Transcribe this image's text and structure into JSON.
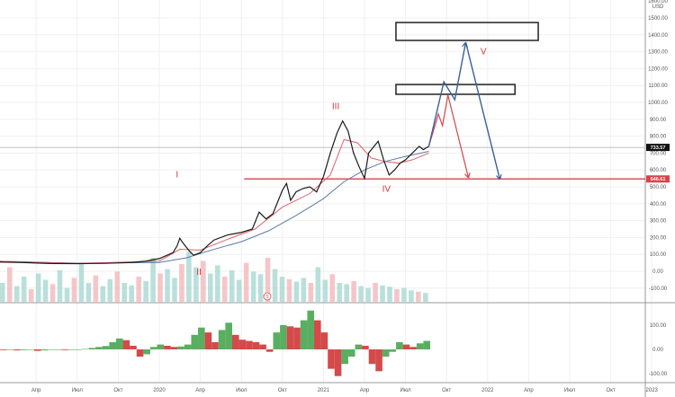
{
  "chart_data": {
    "type": "line",
    "currency_label": "USD",
    "x_unit": "months since 2020-01",
    "x_ticks": [
      {
        "t": -9,
        "label": "Апр"
      },
      {
        "t": -6,
        "label": "Июл"
      },
      {
        "t": -3,
        "label": "Окт"
      },
      {
        "t": 0,
        "label": "2020"
      },
      {
        "t": 3,
        "label": "Апр"
      },
      {
        "t": 6,
        "label": "Июл"
      },
      {
        "t": 9,
        "label": "Окт"
      },
      {
        "t": 12,
        "label": "2021"
      },
      {
        "t": 15,
        "label": "Апр"
      },
      {
        "t": 18,
        "label": "Июл"
      },
      {
        "t": 21,
        "label": "Окт"
      },
      {
        "t": 24,
        "label": "2022"
      },
      {
        "t": 27,
        "label": "Апр"
      },
      {
        "t": 30,
        "label": "Июл"
      },
      {
        "t": 33,
        "label": "Окт"
      },
      {
        "t": 36,
        "label": "2023"
      }
    ],
    "y_ticks": [
      "1500.00",
      "1400.00",
      "1300.00",
      "1200.00",
      "1100.00",
      "1000.00",
      "900.00",
      "800.00",
      "700.00",
      "600.00",
      "500.00",
      "400.00",
      "300.00",
      "200.00",
      "100.00",
      "0.00",
      "-100.00"
    ],
    "y_top_label": "1600.00",
    "ylim": [
      -150,
      1650
    ],
    "price": [
      [
        -12,
        55
      ],
      [
        -10,
        52
      ],
      [
        -8,
        46
      ],
      [
        -6,
        45
      ],
      [
        -4,
        47
      ],
      [
        -2,
        52
      ],
      [
        -1,
        60
      ],
      [
        0,
        75
      ],
      [
        1,
        110
      ],
      [
        1.3,
        150
      ],
      [
        1.5,
        195
      ],
      [
        1.8,
        160
      ],
      [
        2.2,
        120
      ],
      [
        2.5,
        95
      ],
      [
        3,
        110
      ],
      [
        3.5,
        150
      ],
      [
        4,
        185
      ],
      [
        5,
        215
      ],
      [
        6,
        230
      ],
      [
        6.8,
        250
      ],
      [
        7.3,
        350
      ],
      [
        7.8,
        310
      ],
      [
        8.3,
        340
      ],
      [
        9,
        480
      ],
      [
        9.3,
        520
      ],
      [
        9.6,
        420
      ],
      [
        10,
        470
      ],
      [
        10.5,
        490
      ],
      [
        11,
        500
      ],
      [
        11.5,
        470
      ],
      [
        12,
        560
      ],
      [
        12.5,
        700
      ],
      [
        13,
        820
      ],
      [
        13.4,
        890
      ],
      [
        13.8,
        830
      ],
      [
        14.2,
        700
      ],
      [
        14.6,
        620
      ],
      [
        15,
        550
      ],
      [
        15.3,
        700
      ],
      [
        15.7,
        740
      ],
      [
        16,
        770
      ],
      [
        16.4,
        660
      ],
      [
        16.8,
        570
      ],
      [
        17.2,
        600
      ],
      [
        17.6,
        640
      ],
      [
        18,
        660
      ],
      [
        18.5,
        700
      ],
      [
        19,
        740
      ],
      [
        19.3,
        720
      ],
      [
        19.7,
        740
      ]
    ],
    "ma_fast": [
      [
        -12,
        60
      ],
      [
        -6,
        46
      ],
      [
        0,
        60
      ],
      [
        1.5,
        130
      ],
      [
        3,
        125
      ],
      [
        5,
        190
      ],
      [
        7,
        250
      ],
      [
        9,
        380
      ],
      [
        11,
        460
      ],
      [
        12.5,
        570
      ],
      [
        13.5,
        780
      ],
      [
        14.5,
        760
      ],
      [
        15.5,
        670
      ],
      [
        16.5,
        650
      ],
      [
        17.5,
        640
      ],
      [
        18.5,
        660
      ],
      [
        19.7,
        700
      ]
    ],
    "ma_slow": [
      [
        -12,
        60
      ],
      [
        -6,
        48
      ],
      [
        0,
        52
      ],
      [
        2,
        80
      ],
      [
        4,
        130
      ],
      [
        6,
        175
      ],
      [
        8,
        240
      ],
      [
        10,
        330
      ],
      [
        12,
        430
      ],
      [
        13.5,
        530
      ],
      [
        15,
        600
      ],
      [
        16.5,
        650
      ],
      [
        18,
        680
      ],
      [
        19.7,
        710
      ]
    ],
    "volume": [
      30,
      55,
      25,
      40,
      20,
      45,
      35,
      28,
      50,
      22,
      38,
      60,
      30,
      42,
      25,
      36,
      48,
      30,
      26,
      40,
      33,
      70,
      45,
      52,
      38,
      60,
      80,
      55,
      65,
      45,
      58,
      40,
      50,
      35,
      62,
      48,
      44,
      70,
      52,
      40,
      36,
      32,
      38,
      30,
      55,
      35,
      44,
      30,
      28,
      33,
      25,
      22,
      30,
      26,
      24,
      20,
      22,
      18,
      16,
      14
    ],
    "oscillator": [
      -3,
      -2,
      -4,
      -3,
      -2,
      -6,
      -4,
      -2,
      -1,
      -3,
      -2,
      -1,
      2,
      6,
      10,
      14,
      30,
      45,
      38,
      15,
      -30,
      -20,
      10,
      20,
      15,
      10,
      12,
      20,
      60,
      90,
      70,
      30,
      80,
      110,
      60,
      40,
      35,
      30,
      20,
      -10,
      70,
      100,
      95,
      90,
      120,
      160,
      120,
      70,
      -80,
      -110,
      -60,
      -30,
      20,
      15,
      -60,
      -90,
      -30,
      -10,
      30,
      20,
      10,
      25,
      35
    ]
  },
  "price_labels": {
    "current": "733.57",
    "current_value": 733.57,
    "support": "546.61",
    "support_value": 546.61
  },
  "osc_ticks": [
    "100.00",
    "0.00",
    "-100.00"
  ],
  "waves": [
    {
      "label": "I",
      "t": 1.3,
      "p": 555
    },
    {
      "label": "II",
      "t": 2.9,
      "p": -20
    },
    {
      "label": "III",
      "t": 12.9,
      "p": 960
    },
    {
      "label": "IV",
      "t": 16.6,
      "p": 470
    },
    {
      "label": "V",
      "t": 23.7,
      "p": 1285
    }
  ],
  "projection_blue": [
    [
      19.7,
      740
    ],
    [
      20.8,
      1122
    ],
    [
      21.6,
      1016
    ],
    [
      22.4,
      1356
    ],
    [
      24.9,
      543
    ]
  ],
  "projection_red": [
    [
      19.7,
      740
    ],
    [
      20.4,
      931
    ],
    [
      20.7,
      862
    ],
    [
      21.1,
      1043
    ],
    [
      22.6,
      553
    ]
  ],
  "target_boxes": [
    {
      "t0": 17.3,
      "t1": 27.7,
      "p0": 1367,
      "p1": 1473
    },
    {
      "t0": 17.3,
      "t1": 26.0,
      "p0": 1048,
      "p1": 1106
    }
  ],
  "support_line_start_t": 6.2,
  "volume_marker": "5",
  "colors": {
    "price": "#1a1a1a",
    "ma_fast": "#e0606a",
    "ma_slow": "#5b7aa8",
    "blue_arrow": "#3a5f9a",
    "red_arrow": "#d9434a",
    "support": "#d9434a",
    "up": "#5aae61",
    "down": "#d44a4a",
    "vol_up": "#a8d8d2",
    "vol_down": "#f2b8bc"
  }
}
